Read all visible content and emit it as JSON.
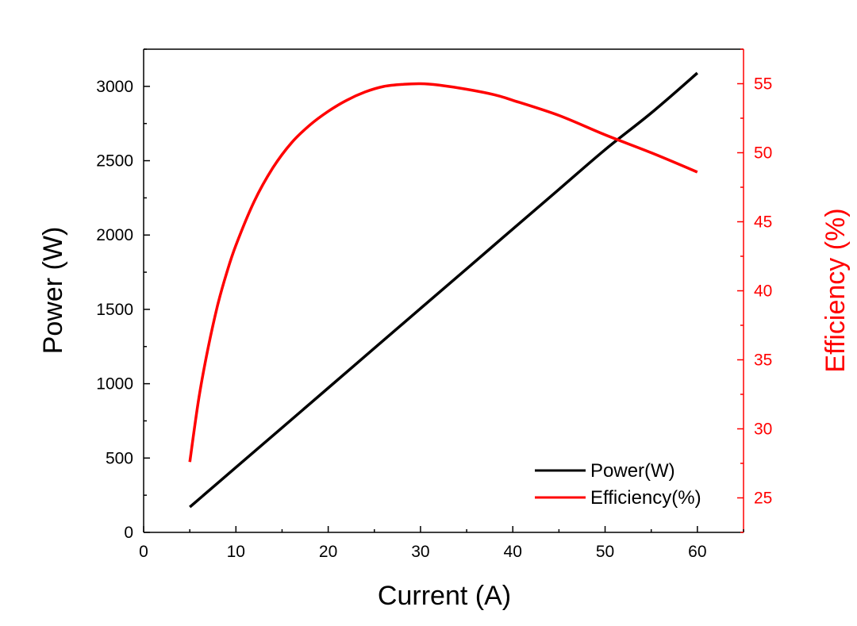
{
  "chart_data": {
    "type": "line",
    "title": "",
    "xlabel": "Current (A)",
    "ylabel": "Power (W)",
    "y2label": "Efficiency (%)",
    "xlim": [
      0,
      65
    ],
    "ylim": [
      0,
      3250
    ],
    "y2lim": [
      22.5,
      57.5
    ],
    "xticks": [
      "0",
      "10",
      "20",
      "30",
      "40",
      "50",
      "60"
    ],
    "yticks": [
      "0",
      "500",
      "1000",
      "1500",
      "2000",
      "2500",
      "3000"
    ],
    "y2ticks": [
      "25",
      "30",
      "35",
      "40",
      "45",
      "50",
      "55"
    ],
    "legend_position": "bottom-right",
    "colors": {
      "power": "#000000",
      "efficiency": "#ff0000"
    },
    "series": [
      {
        "name": "Power(W)",
        "axis": "left",
        "x": [
          5,
          10,
          15,
          20,
          25,
          30,
          35,
          40,
          45,
          50,
          55,
          60
        ],
        "values": [
          170,
          437,
          704,
          971,
          1239,
          1506,
          1773,
          2040,
          2307,
          2574,
          2821,
          3090
        ]
      },
      {
        "name": "Efficiency(%)",
        "axis": "right",
        "x": [
          5,
          6,
          7,
          8,
          9,
          10,
          12,
          14,
          16,
          18,
          20,
          22,
          24,
          26,
          28,
          30,
          32,
          35,
          38,
          40,
          45,
          50,
          55,
          60
        ],
        "values": [
          27.6,
          32.3,
          35.9,
          38.9,
          41.3,
          43.3,
          46.5,
          48.9,
          50.7,
          52.0,
          53.0,
          53.8,
          54.4,
          54.8,
          54.95,
          55.0,
          54.9,
          54.6,
          54.2,
          53.8,
          52.7,
          51.3,
          50.0,
          48.6
        ]
      }
    ]
  }
}
